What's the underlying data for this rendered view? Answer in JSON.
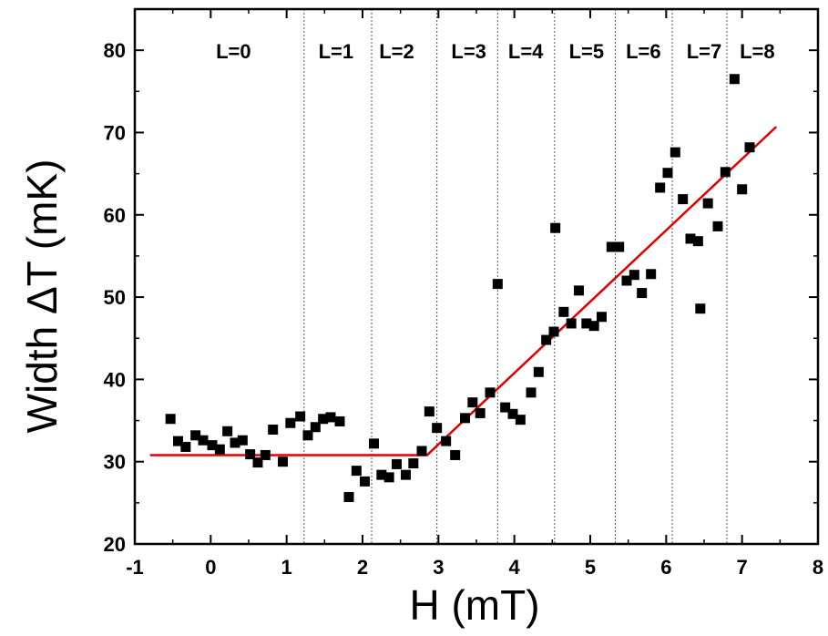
{
  "chart_data": {
    "type": "scatter",
    "xlabel": "H (mT)",
    "ylabel": "Width ΔT (mK)",
    "xlim": [
      -1,
      8
    ],
    "ylim": [
      20,
      85
    ],
    "xticks": [
      -1,
      0,
      1,
      2,
      3,
      4,
      5,
      6,
      7,
      8
    ],
    "yticks": [
      20,
      30,
      40,
      50,
      60,
      70,
      80
    ],
    "grid": false,
    "colors": {
      "points": "#000000",
      "fit": "#e00000",
      "dividers": "#555555",
      "axes": "#000000"
    },
    "regions": {
      "labels": [
        "L=0",
        "L=1",
        "L=2",
        "L=3",
        "L=4",
        "L=5",
        "L=6",
        "L=7",
        "L=8"
      ],
      "label_x": [
        0.3,
        1.65,
        2.45,
        3.4,
        4.15,
        4.95,
        5.7,
        6.5,
        7.2
      ],
      "boundaries": [
        1.23,
        2.12,
        2.98,
        3.78,
        4.53,
        5.33,
        6.08,
        6.8
      ]
    },
    "series": [
      {
        "type": "scatter",
        "points": [
          [
            -0.53,
            35.2
          ],
          [
            -0.43,
            32.5
          ],
          [
            -0.33,
            31.8
          ],
          [
            -0.2,
            33.2
          ],
          [
            -0.1,
            32.6
          ],
          [
            0.02,
            32.0
          ],
          [
            0.12,
            31.5
          ],
          [
            0.22,
            33.7
          ],
          [
            0.32,
            32.3
          ],
          [
            0.42,
            32.6
          ],
          [
            0.52,
            30.9
          ],
          [
            0.62,
            29.9
          ],
          [
            0.72,
            30.8
          ],
          [
            0.82,
            33.9
          ],
          [
            0.95,
            30.0
          ],
          [
            1.05,
            34.7
          ],
          [
            1.18,
            35.5
          ],
          [
            1.28,
            33.2
          ],
          [
            1.38,
            34.2
          ],
          [
            1.48,
            35.2
          ],
          [
            1.58,
            35.4
          ],
          [
            1.7,
            34.9
          ],
          [
            1.82,
            25.7
          ],
          [
            1.92,
            28.9
          ],
          [
            2.03,
            27.6
          ],
          [
            2.15,
            32.2
          ],
          [
            2.25,
            28.4
          ],
          [
            2.35,
            28.1
          ],
          [
            2.45,
            29.7
          ],
          [
            2.57,
            28.4
          ],
          [
            2.67,
            29.8
          ],
          [
            2.78,
            31.3
          ],
          [
            2.88,
            36.1
          ],
          [
            2.98,
            34.1
          ],
          [
            3.1,
            32.5
          ],
          [
            3.22,
            30.8
          ],
          [
            3.35,
            35.3
          ],
          [
            3.45,
            37.2
          ],
          [
            3.55,
            35.9
          ],
          [
            3.68,
            38.4
          ],
          [
            3.78,
            51.6
          ],
          [
            3.88,
            36.6
          ],
          [
            3.98,
            35.8
          ],
          [
            4.08,
            35.1
          ],
          [
            4.22,
            38.4
          ],
          [
            4.32,
            40.9
          ],
          [
            4.42,
            44.8
          ],
          [
            4.52,
            45.8
          ],
          [
            4.54,
            58.4
          ],
          [
            4.65,
            48.2
          ],
          [
            4.75,
            46.8
          ],
          [
            4.85,
            50.8
          ],
          [
            4.95,
            46.8
          ],
          [
            5.05,
            46.5
          ],
          [
            5.15,
            47.6
          ],
          [
            5.28,
            56.1
          ],
          [
            5.38,
            56.1
          ],
          [
            5.48,
            52.0
          ],
          [
            5.58,
            52.7
          ],
          [
            5.68,
            50.5
          ],
          [
            5.8,
            52.8
          ],
          [
            5.92,
            63.3
          ],
          [
            6.02,
            65.1
          ],
          [
            6.12,
            67.6
          ],
          [
            6.22,
            61.9
          ],
          [
            6.32,
            57.1
          ],
          [
            6.42,
            56.8
          ],
          [
            6.45,
            48.6
          ],
          [
            6.55,
            61.4
          ],
          [
            6.68,
            58.6
          ],
          [
            6.78,
            65.2
          ],
          [
            6.9,
            76.5
          ],
          [
            7.0,
            63.1
          ],
          [
            7.1,
            68.2
          ]
        ]
      },
      {
        "type": "line",
        "points": [
          [
            -0.8,
            30.8
          ],
          [
            2.85,
            30.8
          ],
          [
            7.45,
            70.7
          ]
        ]
      }
    ]
  }
}
